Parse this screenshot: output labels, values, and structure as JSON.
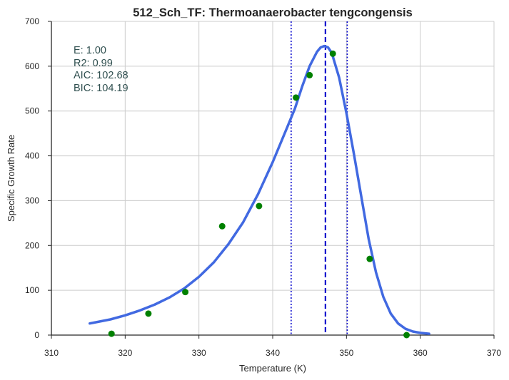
{
  "chart_data": {
    "type": "scatter",
    "title": "512_Sch_TF: Thermoanaerobacter tengcongensis",
    "xlabel": "Temperature (K)",
    "ylabel": "Specific Growth Rate",
    "xlim": [
      310,
      370
    ],
    "ylim": [
      0,
      700
    ],
    "x_ticks": [
      310,
      320,
      330,
      340,
      350,
      360,
      370
    ],
    "y_ticks": [
      0,
      100,
      200,
      300,
      400,
      500,
      600,
      700
    ],
    "grid": true,
    "series": [
      {
        "type": "scatter",
        "color": "#008000",
        "x": [
          318.15,
          323.15,
          328.15,
          333.15,
          338.15,
          343.15,
          345.0,
          348.15,
          353.15,
          358.15
        ],
        "y": [
          3,
          48,
          96,
          243,
          288,
          530,
          580,
          628,
          170,
          0
        ]
      },
      {
        "type": "line",
        "color": "#4169e1",
        "x": [
          315.2,
          318,
          320,
          322,
          324,
          326,
          328,
          330,
          332,
          334,
          336,
          338,
          340,
          342,
          343,
          344,
          345,
          346,
          346.5,
          347,
          347.5,
          348,
          349,
          350,
          351,
          352,
          353,
          354,
          355,
          356,
          357,
          358,
          359,
          360,
          361.2
        ],
        "y": [
          26,
          35,
          44,
          55,
          68,
          84,
          104,
          130,
          162,
          203,
          252,
          314,
          386,
          465,
          505,
          555,
          600,
          632,
          642,
          645,
          642,
          630,
          575,
          495,
          405,
          310,
          215,
          140,
          85,
          48,
          26,
          14,
          8,
          5,
          3
        ]
      }
    ],
    "vlines": [
      {
        "x": 347.15,
        "style": "dashed",
        "color": "#0000cd"
      },
      {
        "x": 342.5,
        "style": "dotted",
        "color": "#0000cd"
      },
      {
        "x": 350.1,
        "style": "dotted",
        "color": "#0000cd"
      }
    ],
    "annotation": {
      "color": "#2f4f4f",
      "lines": [
        "E:  1.00",
        "R2:  0.99",
        "AIC: 102.68",
        "BIC: 104.19"
      ]
    }
  }
}
